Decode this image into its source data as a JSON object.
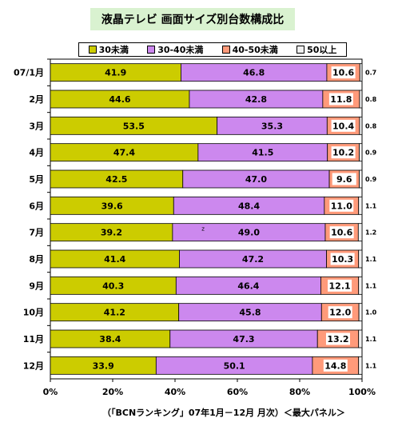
{
  "chart_data": {
    "type": "bar",
    "orientation": "horizontal",
    "stacked_percent": true,
    "title": "液晶テレビ  画面サイズ別台数構成比",
    "categories": [
      "07/1月",
      "2月",
      "3月",
      "4月",
      "5月",
      "6月",
      "7月",
      "8月",
      "9月",
      "10月",
      "11月",
      "12月"
    ],
    "series": [
      {
        "name": "30未満",
        "color": "#cccc00",
        "values": [
          41.9,
          44.6,
          53.5,
          47.4,
          42.5,
          39.6,
          39.2,
          41.4,
          40.3,
          41.2,
          38.4,
          33.9
        ]
      },
      {
        "name": "30-40未満",
        "color": "#cc88ee",
        "values": [
          46.8,
          42.8,
          35.3,
          41.5,
          47.0,
          48.4,
          49.0,
          47.2,
          46.4,
          45.8,
          47.3,
          50.1
        ]
      },
      {
        "name": "40-50未満",
        "color": "#ff9a7a",
        "values": [
          10.6,
          11.8,
          10.4,
          10.2,
          9.6,
          11.0,
          10.6,
          10.3,
          12.1,
          12.0,
          13.2,
          14.8
        ]
      },
      {
        "name": "50以上",
        "color": "#f0f0f0",
        "values": [
          0.7,
          0.8,
          0.8,
          0.9,
          0.9,
          1.1,
          1.2,
          1.1,
          1.1,
          1.0,
          1.1,
          1.1
        ]
      }
    ],
    "xlim": [
      0,
      100
    ],
    "x_tick_labels": [
      "0%",
      "20%",
      "40%",
      "60%",
      "80%",
      "100%"
    ],
    "legend_position": "top",
    "grid": false,
    "annotations": [
      {
        "text": "z",
        "category": "7月"
      }
    ]
  },
  "source_note": "（「BCNランキング」07年1月－12月 月次）＜最大パネル＞"
}
